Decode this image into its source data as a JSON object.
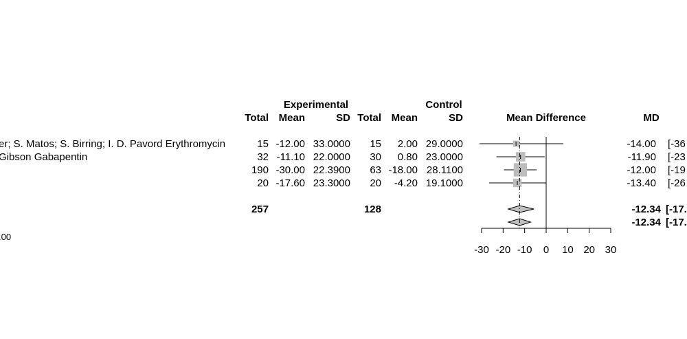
{
  "chart_data": {
    "type": "forest",
    "header": {
      "group_experimental": "Experimental",
      "group_control": "Control",
      "col_total": "Total",
      "col_mean": "Mean",
      "col_sd": "SD",
      "plot_label": "Mean Difference",
      "col_md": "MD"
    },
    "studies": [
      {
        "label": "er; S. Matos; S. Birring; I. D. Pavord Erythromycin",
        "e_total": "15",
        "e_mean": "-12.00",
        "e_sd": "33.0000",
        "c_total": "15",
        "c_mean": "2.00",
        "c_sd": "29.0000",
        "md_text": "-14.00",
        "ci_text": "[-36",
        "md": -14.0,
        "ci_low": -36.0,
        "ci_high": 8.0,
        "weight": 0.03
      },
      {
        "label": "Gibson Gabapentin",
        "e_total": "32",
        "e_mean": "-11.10",
        "e_sd": "22.0000",
        "c_total": "30",
        "c_mean": "0.80",
        "c_sd": "23.0000",
        "md_text": "-11.90",
        "ci_text": "[-23",
        "md": -11.9,
        "ci_low": -23.1,
        "ci_high": -0.7,
        "weight": 0.12
      },
      {
        "label": "",
        "e_total": "190",
        "e_mean": "-30.00",
        "e_sd": "22.3900",
        "c_total": "63",
        "c_mean": "-18.00",
        "c_sd": "28.1100",
        "md_text": "-12.00",
        "ci_text": "[-19",
        "md": -12.0,
        "ci_low": -19.6,
        "ci_high": -4.4,
        "weight": 0.3
      },
      {
        "label": "",
        "e_total": "20",
        "e_mean": "-17.60",
        "e_sd": "23.3000",
        "c_total": "20",
        "c_mean": "-4.20",
        "c_sd": "19.1000",
        "md_text": "-13.40",
        "ci_text": "[-26",
        "md": -13.4,
        "ci_low": -26.5,
        "ci_high": 0.0,
        "weight": 0.09
      }
    ],
    "total_row": {
      "e_total": "257",
      "c_total": "128",
      "md_text": "-12.34",
      "ci_text": "[-17."
    },
    "pooled": [
      {
        "md_text": "-12.34",
        "ci_text": "[-17.",
        "md": -12.34,
        "ci_low": -17.6,
        "ci_high": -5.7
      },
      {
        "md_text": "-12.34",
        "ci_text": "[-17.",
        "md": -12.34,
        "ci_low": -17.6,
        "ci_high": -7.2
      }
    ],
    "heterogeneity_text": ".00",
    "x_ticks": [
      -30,
      -20,
      -10,
      0,
      10,
      20,
      30
    ],
    "xlim": [
      -30,
      30
    ],
    "reference_line": 0,
    "colors": {
      "box": "#bdbdbd",
      "diamond": "#c0c0c0",
      "line": "#000000"
    }
  }
}
